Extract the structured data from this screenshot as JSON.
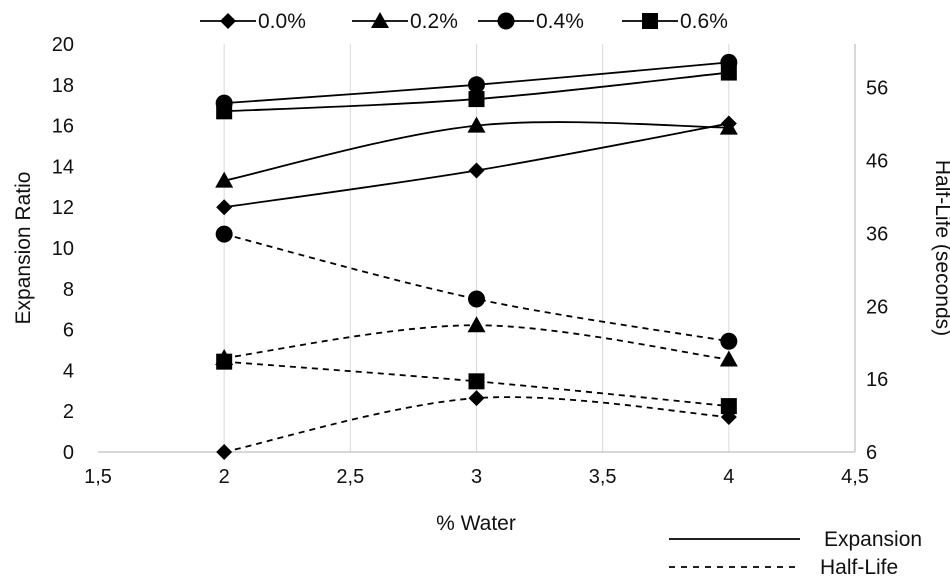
{
  "chart_data": {
    "type": "line",
    "x": [
      2,
      3,
      4
    ],
    "xlabel": "% Water",
    "ylabel": "Expansion Ratio",
    "y2label": "Half-Life (seconds)",
    "xlim": [
      1.5,
      4.5
    ],
    "ylim": [
      0,
      20
    ],
    "y2lim": [
      6,
      62
    ],
    "x_ticks": [
      "1,5",
      "2",
      "2,5",
      "3",
      "3,5",
      "4",
      "4,5"
    ],
    "y_ticks": [
      "0",
      "2",
      "4",
      "6",
      "8",
      "10",
      "12",
      "14",
      "16",
      "18",
      "20"
    ],
    "y2_ticks": [
      "6",
      "16",
      "26",
      "36",
      "46",
      "56"
    ],
    "y2_tick_values": [
      6,
      16,
      26,
      36,
      46,
      56
    ],
    "grid": "vertical",
    "legend_position": "top",
    "series_legend": [
      {
        "name": "0.0%",
        "marker": "diamond"
      },
      {
        "name": "0.2%",
        "marker": "triangle"
      },
      {
        "name": "0.4%",
        "marker": "circle"
      },
      {
        "name": "0.6%",
        "marker": "square"
      }
    ],
    "style_legend": [
      {
        "name": "Expansion",
        "style": "solid"
      },
      {
        "name": "Half-Life",
        "style": "dashed"
      }
    ],
    "series": [
      {
        "name": "0.0%",
        "kind": "Expansion",
        "axis": "left",
        "marker": "diamond",
        "values": [
          12.0,
          13.8,
          16.1
        ]
      },
      {
        "name": "0.2%",
        "kind": "Expansion",
        "axis": "left",
        "marker": "triangle",
        "values": [
          13.3,
          16.0,
          15.9
        ]
      },
      {
        "name": "0.4%",
        "kind": "Expansion",
        "axis": "left",
        "marker": "circle",
        "values": [
          17.1,
          18.0,
          19.1
        ]
      },
      {
        "name": "0.6%",
        "kind": "Expansion",
        "axis": "left",
        "marker": "square",
        "values": [
          16.7,
          17.3,
          18.6
        ]
      },
      {
        "name": "0.0%",
        "kind": "Half-Life",
        "axis": "right",
        "marker": "diamond",
        "values": [
          6.0,
          13.4,
          10.8
        ]
      },
      {
        "name": "0.2%",
        "kind": "Half-Life",
        "axis": "right",
        "marker": "triangle",
        "values": [
          18.9,
          23.4,
          18.7
        ]
      },
      {
        "name": "0.4%",
        "kind": "Half-Life",
        "axis": "right",
        "marker": "circle",
        "values": [
          35.9,
          27.0,
          21.2
        ]
      },
      {
        "name": "0.6%",
        "kind": "Half-Life",
        "axis": "right",
        "marker": "square",
        "values": [
          18.4,
          15.7,
          12.3
        ]
      }
    ],
    "colors": {
      "line": "#000000",
      "grid": "#d9d9d9",
      "axis": "#bfbfbf"
    }
  }
}
